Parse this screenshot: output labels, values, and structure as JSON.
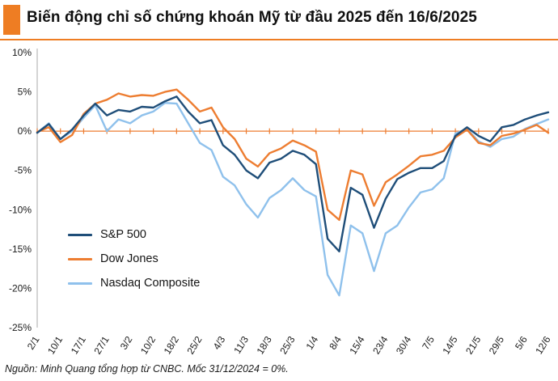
{
  "header": {
    "title": "Biến động chỉ số chứng khoán Mỹ từ đầu 2025 đến 16/6/2025"
  },
  "footer": {
    "source": "Nguồn: Minh Quang tổng hợp từ CNBC. Mốc 31/12/2024 = 0%."
  },
  "colors": {
    "accent_orange": "#ee7d23",
    "sp500": "#1f4e79",
    "dow_jones": "#ed7d31",
    "nasdaq": "#8fc1ec",
    "zero_axis": "#ed7d31"
  },
  "chart_data": {
    "type": "line",
    "title": "Biến động chỉ số chứng khoán Mỹ từ đầu 2025 đến 16/6/2025",
    "xlabel": "",
    "ylabel": "",
    "ylim": [
      -25,
      10
    ],
    "grid": false,
    "legend_position": "inside-left-bottom",
    "yticks": [
      {
        "v": 10,
        "label": "10%"
      },
      {
        "v": 5,
        "label": "5%"
      },
      {
        "v": 0,
        "label": "0%"
      },
      {
        "v": -5,
        "label": "-5%"
      },
      {
        "v": -10,
        "label": "-10%"
      },
      {
        "v": -15,
        "label": "-15%"
      },
      {
        "v": -20,
        "label": "-20%"
      },
      {
        "v": -25,
        "label": "-25%"
      }
    ],
    "categories": [
      "2/1",
      "",
      "10/1",
      "",
      "17/1",
      "",
      "27/1",
      "",
      "3/2",
      "",
      "10/2",
      "",
      "18/2",
      "",
      "25/2",
      "",
      "4/3",
      "",
      "11/3",
      "",
      "18/3",
      "",
      "25/3",
      "",
      "1/4",
      "",
      "8/4",
      "",
      "15/4",
      "",
      "23/4",
      "",
      "30/4",
      "",
      "7/5",
      "",
      "14/5",
      "",
      "21/5",
      "",
      "29/5",
      "",
      "5/6",
      "",
      "12/6"
    ],
    "series": [
      {
        "name": "S&P 500",
        "color": "#1f4e79",
        "values": [
          -0.2,
          0.9,
          -1.0,
          0.2,
          2.0,
          3.5,
          2.0,
          2.7,
          2.5,
          3.1,
          3.0,
          3.8,
          4.4,
          2.5,
          1.0,
          1.4,
          -1.8,
          -3.0,
          -5.0,
          -6.0,
          -4.0,
          -3.5,
          -2.5,
          -3.0,
          -4.2,
          -13.7,
          -15.3,
          -7.2,
          -8.1,
          -12.3,
          -8.6,
          -6.1,
          -5.3,
          -4.7,
          -4.7,
          -3.8,
          -0.6,
          0.5,
          -0.6,
          -1.3,
          0.5,
          0.8,
          1.5,
          2.0,
          2.4
        ]
      },
      {
        "name": "Dow Jones",
        "color": "#ed7d31",
        "values": [
          -0.1,
          0.5,
          -1.4,
          -0.5,
          2.2,
          3.5,
          4.0,
          4.8,
          4.4,
          4.6,
          4.5,
          5.0,
          5.3,
          4.0,
          2.5,
          3.0,
          0.5,
          -1.0,
          -3.5,
          -4.5,
          -2.8,
          -2.2,
          -1.2,
          -1.8,
          -2.6,
          -10.0,
          -11.3,
          -5.0,
          -5.5,
          -9.5,
          -6.5,
          -5.5,
          -4.4,
          -3.2,
          -3.0,
          -2.5,
          -0.8,
          0.2,
          -1.5,
          -1.8,
          -0.6,
          -0.3,
          0.2,
          0.8,
          -0.2
        ]
      },
      {
        "name": "Nasdaq Composite",
        "color": "#8fc1ec",
        "values": [
          -0.2,
          1.0,
          -1.0,
          0.0,
          1.7,
          3.3,
          0.0,
          1.5,
          1.0,
          2.0,
          2.5,
          3.6,
          3.5,
          1.0,
          -1.5,
          -2.4,
          -5.8,
          -6.9,
          -9.3,
          -11.0,
          -8.5,
          -7.5,
          -6.0,
          -7.5,
          -8.3,
          -18.3,
          -20.9,
          -12.0,
          -13.0,
          -17.8,
          -13.0,
          -12.0,
          -9.7,
          -7.8,
          -7.4,
          -6.0,
          -0.3,
          0.3,
          -1.3,
          -2.0,
          -1.0,
          -0.7,
          0.3,
          0.9,
          1.5
        ]
      }
    ]
  }
}
